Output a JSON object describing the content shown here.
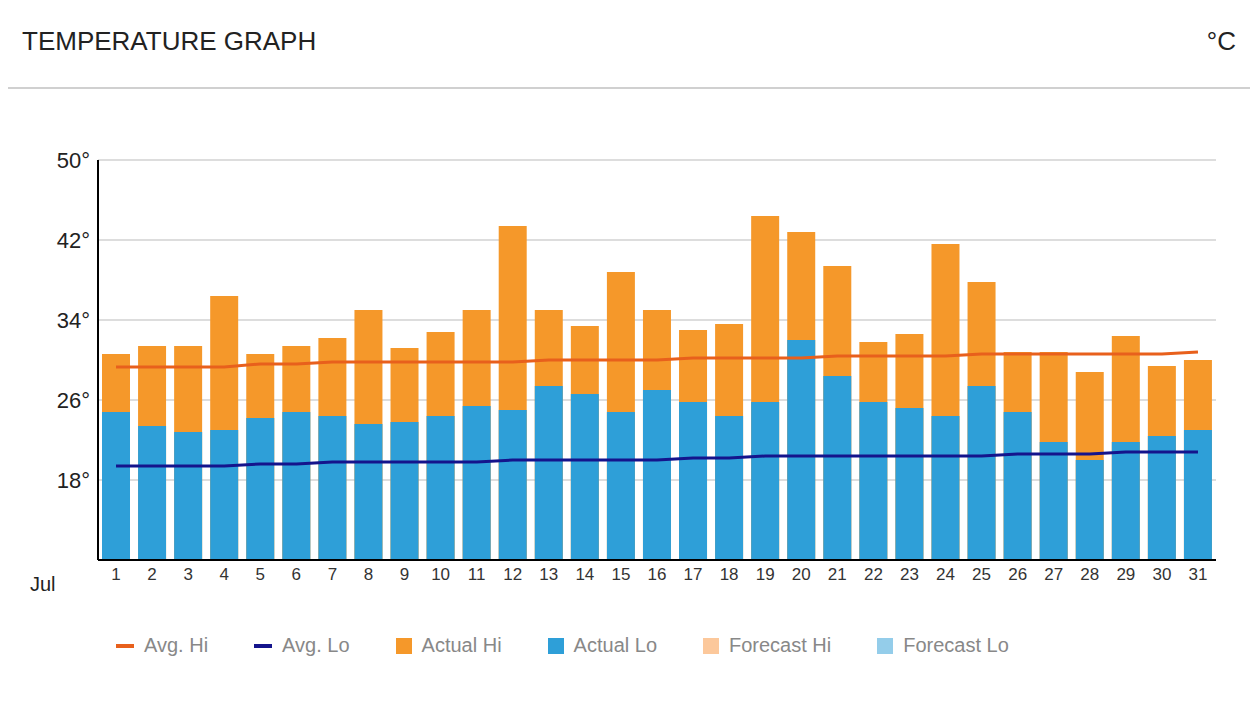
{
  "chart_data": {
    "type": "bar",
    "title": "TEMPERATURE GRAPH",
    "unit": "°C",
    "x_label": "Jul",
    "categories": [
      "1",
      "2",
      "3",
      "4",
      "5",
      "6",
      "7",
      "8",
      "9",
      "10",
      "11",
      "12",
      "13",
      "14",
      "15",
      "16",
      "17",
      "18",
      "19",
      "20",
      "21",
      "22",
      "23",
      "24",
      "25",
      "26",
      "27",
      "28",
      "29",
      "30",
      "31"
    ],
    "ylim": [
      10,
      50
    ],
    "yticks": [
      {
        "value": 18,
        "label": "18°"
      },
      {
        "value": 26,
        "label": "26°"
      },
      {
        "value": 34,
        "label": "34°"
      },
      {
        "value": 42,
        "label": "42°"
      },
      {
        "value": 50,
        "label": "50°"
      }
    ],
    "grid": true,
    "series": [
      {
        "name": "Avg. Hi",
        "type": "line",
        "color": "#e8601c",
        "values": [
          29.3,
          29.3,
          29.3,
          29.3,
          29.6,
          29.6,
          29.8,
          29.8,
          29.8,
          29.8,
          29.8,
          29.8,
          30,
          30,
          30,
          30,
          30.2,
          30.2,
          30.2,
          30.2,
          30.4,
          30.4,
          30.4,
          30.4,
          30.6,
          30.6,
          30.6,
          30.6,
          30.6,
          30.6,
          30.8
        ]
      },
      {
        "name": "Avg. Lo",
        "type": "line",
        "color": "#14148c",
        "values": [
          19.4,
          19.4,
          19.4,
          19.4,
          19.6,
          19.6,
          19.8,
          19.8,
          19.8,
          19.8,
          19.8,
          20,
          20,
          20,
          20,
          20,
          20.2,
          20.2,
          20.4,
          20.4,
          20.4,
          20.4,
          20.4,
          20.4,
          20.4,
          20.6,
          20.6,
          20.6,
          20.8,
          20.8,
          20.8
        ]
      },
      {
        "name": "Actual Hi",
        "type": "bar",
        "color": "#f5982a",
        "values": [
          30.6,
          31.4,
          31.4,
          36.4,
          30.6,
          31.4,
          32.2,
          35,
          31.2,
          32.8,
          35,
          43.4,
          35,
          33.4,
          38.8,
          35,
          33,
          33.6,
          44.4,
          42.8,
          39.4,
          31.8,
          32.6,
          41.6,
          37.8,
          30.8,
          30.8,
          28.8,
          32.4,
          29.4,
          30
        ]
      },
      {
        "name": "Actual Lo",
        "type": "bar",
        "color": "#2e9fd8",
        "values": [
          24.8,
          23.4,
          22.8,
          23,
          24.2,
          24.8,
          24.4,
          23.6,
          23.8,
          24.4,
          25.4,
          25,
          27.4,
          26.6,
          24.8,
          27,
          25.8,
          24.4,
          25.8,
          32,
          28.4,
          25.8,
          25.2,
          24.4,
          27.4,
          24.8,
          21.8,
          20,
          21.8,
          22.4,
          23
        ]
      },
      {
        "name": "Forecast Hi",
        "type": "bar",
        "color": "#fcc89b",
        "values": [
          null,
          null,
          null,
          null,
          null,
          null,
          null,
          null,
          null,
          null,
          null,
          null,
          null,
          null,
          null,
          null,
          null,
          null,
          null,
          null,
          null,
          null,
          null,
          null,
          null,
          null,
          null,
          null,
          null,
          null,
          null
        ]
      },
      {
        "name": "Forecast Lo",
        "type": "bar",
        "color": "#94cdea",
        "values": [
          null,
          null,
          null,
          null,
          null,
          null,
          null,
          null,
          null,
          null,
          null,
          null,
          null,
          null,
          null,
          null,
          null,
          null,
          null,
          null,
          null,
          null,
          null,
          null,
          null,
          null,
          null,
          null,
          null,
          null,
          null
        ]
      }
    ]
  }
}
